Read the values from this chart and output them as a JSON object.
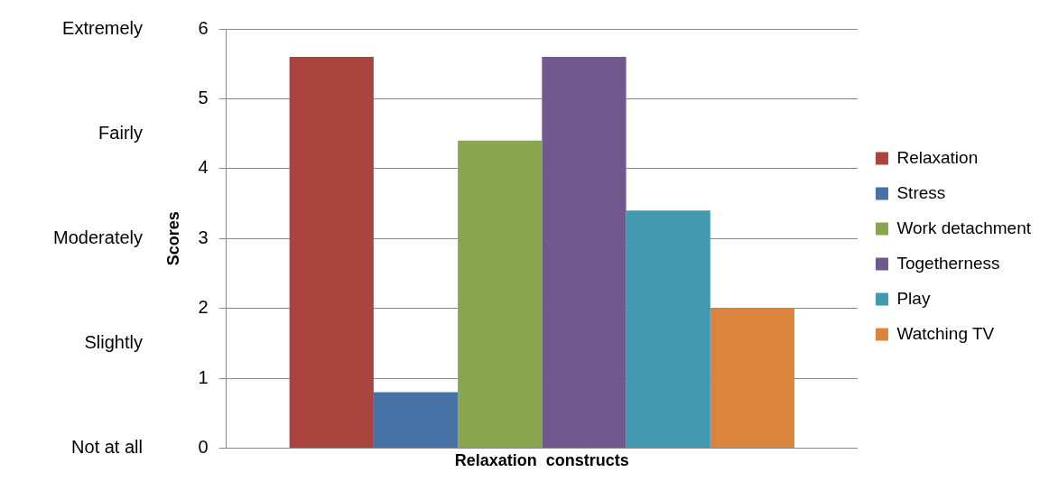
{
  "chart_data": {
    "type": "bar",
    "xlabel": "Relaxation  constructs",
    "ylabel": "Scores",
    "categories": [
      null
    ],
    "series": [
      {
        "name": "Relaxation",
        "color": "#a9443f",
        "values": [
          5.6
        ]
      },
      {
        "name": "Stress",
        "color": "#4672a5",
        "values": [
          0.8
        ]
      },
      {
        "name": "Work detachment",
        "color": "#89a54e",
        "values": [
          4.4
        ]
      },
      {
        "name": "Togetherness",
        "color": "#71588f",
        "values": [
          5.6
        ]
      },
      {
        "name": "Play",
        "color": "#4198af",
        "values": [
          3.4
        ]
      },
      {
        "name": "Watching TV",
        "color": "#db843d",
        "values": [
          2.0
        ]
      }
    ],
    "ylim": [
      0,
      6
    ],
    "yticks": [
      0,
      1,
      2,
      3,
      4,
      5,
      6
    ],
    "annotations": [
      "Extremely",
      "Fairly",
      "Moderately",
      "Slightly",
      "Not at all"
    ],
    "grid": "y",
    "legend": "right"
  }
}
